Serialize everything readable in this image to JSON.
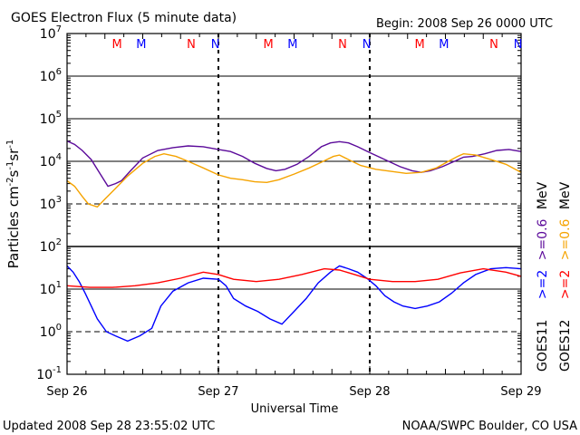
{
  "header": {
    "title": "GOES Electron Flux (5 minute data)",
    "begin": "Begin: 2008 Sep 26 0000 UTC"
  },
  "footer": {
    "updated": "Updated 2008 Sep 28 23:55:02 UTC",
    "source": "NOAA/SWPC Boulder, CO USA"
  },
  "right_labels": {
    "col1": {
      "prefix": "GOES11",
      "blue": ">=2",
      "purple": ">=0.6",
      "unit": "MeV"
    },
    "col2": {
      "prefix": "GOES12",
      "red": ">=2",
      "orange": ">=0.6",
      "unit": "MeV"
    }
  },
  "colors": {
    "goes11_2mev": "#0000ff",
    "goes11_06mev": "#5b0a9a",
    "goes12_2mev": "#ff0000",
    "goes12_06mev": "#f5a300",
    "marker_m": "#ff0000",
    "marker_n": "#0000ff",
    "marker_m2": "#0000ff",
    "marker_n1": "#ff0000"
  },
  "chart_data": {
    "type": "line",
    "title": "GOES Electron Flux (5 minute data)",
    "xlabel": "Universal Time",
    "ylabel": "Particles cm^-2 s^-1 sr^-1",
    "yscale": "log",
    "ylim": [
      0.1,
      10000000
    ],
    "xlim_days": [
      0,
      3
    ],
    "x_tick_labels": [
      "Sep 26",
      "Sep 27",
      "Sep 28",
      "Sep 29"
    ],
    "y_tick_labels": [
      {
        "base": "10",
        "exp": "7"
      },
      {
        "base": "10",
        "exp": "6"
      },
      {
        "base": "10",
        "exp": "5"
      },
      {
        "base": "10",
        "exp": "4"
      },
      {
        "base": "10",
        "exp": "3"
      },
      {
        "base": "10",
        "exp": "2"
      },
      {
        "base": "10",
        "exp": "1"
      },
      {
        "base": "10",
        "exp": "0"
      },
      {
        "base": "10",
        "exp": "-1"
      }
    ],
    "markers": [
      {
        "label": "M",
        "day": 0.33,
        "color": "marker_m"
      },
      {
        "label": "M",
        "day": 0.49,
        "color": "marker_m2"
      },
      {
        "label": "N",
        "day": 0.82,
        "color": "marker_n1"
      },
      {
        "label": "N",
        "day": 0.98,
        "color": "marker_n"
      },
      {
        "label": "M",
        "day": 1.33,
        "color": "marker_m"
      },
      {
        "label": "M",
        "day": 1.49,
        "color": "marker_m2"
      },
      {
        "label": "N",
        "day": 1.82,
        "color": "marker_n1"
      },
      {
        "label": "N",
        "day": 1.98,
        "color": "marker_n"
      },
      {
        "label": "M",
        "day": 2.33,
        "color": "marker_m"
      },
      {
        "label": "M",
        "day": 2.49,
        "color": "marker_m2"
      },
      {
        "label": "N",
        "day": 2.82,
        "color": "marker_n1"
      },
      {
        "label": "N",
        "day": 2.98,
        "color": "marker_n"
      }
    ],
    "series": [
      {
        "name": "GOES11 >=0.6 MeV",
        "color": "goes11_06mev",
        "points": [
          [
            0,
            30000
          ],
          [
            0.05,
            25000
          ],
          [
            0.1,
            18000
          ],
          [
            0.16,
            11000
          ],
          [
            0.22,
            5000
          ],
          [
            0.27,
            2600
          ],
          [
            0.32,
            3000
          ],
          [
            0.36,
            3500
          ],
          [
            0.42,
            6000
          ],
          [
            0.5,
            12000
          ],
          [
            0.6,
            18000
          ],
          [
            0.7,
            21000
          ],
          [
            0.8,
            23000
          ],
          [
            0.9,
            22000
          ],
          [
            1.0,
            19000
          ],
          [
            1.08,
            17000
          ],
          [
            1.16,
            13000
          ],
          [
            1.24,
            9000
          ],
          [
            1.32,
            6800
          ],
          [
            1.38,
            6000
          ],
          [
            1.44,
            6500
          ],
          [
            1.52,
            8500
          ],
          [
            1.6,
            13000
          ],
          [
            1.68,
            22000
          ],
          [
            1.74,
            27000
          ],
          [
            1.8,
            29000
          ],
          [
            1.86,
            27000
          ],
          [
            1.92,
            22000
          ],
          [
            2.0,
            16000
          ],
          [
            2.1,
            11000
          ],
          [
            2.2,
            7500
          ],
          [
            2.28,
            6000
          ],
          [
            2.34,
            5500
          ],
          [
            2.4,
            6000
          ],
          [
            2.48,
            7500
          ],
          [
            2.56,
            10000
          ],
          [
            2.62,
            12500
          ],
          [
            2.68,
            13000
          ],
          [
            2.76,
            15000
          ],
          [
            2.84,
            18000
          ],
          [
            2.92,
            19000
          ],
          [
            3.0,
            17000
          ]
        ]
      },
      {
        "name": "GOES12 >=0.6 MeV",
        "color": "goes12_06mev",
        "points": [
          [
            0,
            3500
          ],
          [
            0.05,
            2600
          ],
          [
            0.1,
            1500
          ],
          [
            0.14,
            1000
          ],
          [
            0.2,
            850
          ],
          [
            0.25,
            1300
          ],
          [
            0.32,
            2300
          ],
          [
            0.4,
            4500
          ],
          [
            0.5,
            9000
          ],
          [
            0.58,
            13000
          ],
          [
            0.64,
            15000
          ],
          [
            0.72,
            13000
          ],
          [
            0.8,
            10000
          ],
          [
            0.9,
            7000
          ],
          [
            1.0,
            4800
          ],
          [
            1.08,
            4000
          ],
          [
            1.16,
            3700
          ],
          [
            1.24,
            3300
          ],
          [
            1.32,
            3200
          ],
          [
            1.4,
            3700
          ],
          [
            1.5,
            5000
          ],
          [
            1.6,
            7000
          ],
          [
            1.68,
            9500
          ],
          [
            1.76,
            13000
          ],
          [
            1.8,
            14000
          ],
          [
            1.86,
            11000
          ],
          [
            1.94,
            8000
          ],
          [
            2.04,
            6500
          ],
          [
            2.14,
            5800
          ],
          [
            2.24,
            5200
          ],
          [
            2.34,
            5500
          ],
          [
            2.44,
            7000
          ],
          [
            2.52,
            10000
          ],
          [
            2.58,
            13000
          ],
          [
            2.62,
            15000
          ],
          [
            2.7,
            14000
          ],
          [
            2.8,
            11000
          ],
          [
            2.9,
            8500
          ],
          [
            3.0,
            5500
          ]
        ]
      },
      {
        "name": "GOES11 >=2 MeV",
        "color": "goes11_2mev",
        "points": [
          [
            0,
            35
          ],
          [
            0.04,
            25
          ],
          [
            0.08,
            15
          ],
          [
            0.12,
            8
          ],
          [
            0.16,
            4
          ],
          [
            0.2,
            2
          ],
          [
            0.26,
            1
          ],
          [
            0.32,
            0.8
          ],
          [
            0.4,
            0.6
          ],
          [
            0.48,
            0.8
          ],
          [
            0.56,
            1.2
          ],
          [
            0.62,
            4
          ],
          [
            0.7,
            9
          ],
          [
            0.8,
            14
          ],
          [
            0.9,
            18
          ],
          [
            1.0,
            17
          ],
          [
            1.05,
            12
          ],
          [
            1.1,
            6
          ],
          [
            1.18,
            4
          ],
          [
            1.26,
            3
          ],
          [
            1.34,
            2
          ],
          [
            1.42,
            1.5
          ],
          [
            1.5,
            3
          ],
          [
            1.58,
            6
          ],
          [
            1.66,
            14
          ],
          [
            1.74,
            25
          ],
          [
            1.8,
            35
          ],
          [
            1.86,
            30
          ],
          [
            1.92,
            25
          ],
          [
            1.98,
            18
          ],
          [
            2.04,
            12
          ],
          [
            2.1,
            7
          ],
          [
            2.16,
            5
          ],
          [
            2.22,
            4
          ],
          [
            2.3,
            3.5
          ],
          [
            2.38,
            4
          ],
          [
            2.46,
            5
          ],
          [
            2.54,
            8
          ],
          [
            2.62,
            14
          ],
          [
            2.7,
            22
          ],
          [
            2.8,
            30
          ],
          [
            2.9,
            32
          ],
          [
            3.0,
            30
          ]
        ]
      },
      {
        "name": "GOES12 >=2 MeV",
        "color": "goes12_2mev",
        "points": [
          [
            0,
            12
          ],
          [
            0.15,
            11
          ],
          [
            0.3,
            11
          ],
          [
            0.45,
            12
          ],
          [
            0.6,
            14
          ],
          [
            0.75,
            18
          ],
          [
            0.9,
            25
          ],
          [
            1.0,
            22
          ],
          [
            1.1,
            17
          ],
          [
            1.25,
            15
          ],
          [
            1.4,
            17
          ],
          [
            1.55,
            22
          ],
          [
            1.7,
            30
          ],
          [
            1.8,
            28
          ],
          [
            1.9,
            22
          ],
          [
            2.0,
            17
          ],
          [
            2.15,
            15
          ],
          [
            2.3,
            15
          ],
          [
            2.45,
            17
          ],
          [
            2.6,
            24
          ],
          [
            2.75,
            30
          ],
          [
            2.9,
            25
          ],
          [
            3.0,
            20
          ]
        ]
      }
    ]
  },
  "axes": {
    "left": 74,
    "right": 575,
    "top": 37,
    "bottom": 413
  }
}
